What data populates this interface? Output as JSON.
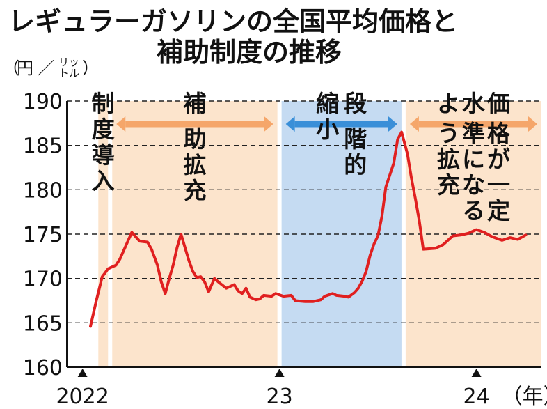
{
  "title": {
    "line1": "レギュラーガソリンの全国平均価格と",
    "line2": "補助制度の推移"
  },
  "y_unit": {
    "open": "（",
    "main": "円",
    "slash": "／",
    "small_top": "リッ",
    "small_bottom": "トル",
    "close": "）"
  },
  "chart_data": {
    "type": "line",
    "title": "レギュラーガソリンの全国平均価格と補助制度の推移",
    "ylabel": "円／リットル",
    "xlabel": "年",
    "ylim": [
      160,
      190
    ],
    "yticks": [
      160,
      165,
      170,
      175,
      180,
      185,
      190
    ],
    "x_unit": "年",
    "x_tick_labels": [
      {
        "label": "2022",
        "x": 2022.0
      },
      {
        "label": "23",
        "x": 2023.0
      },
      {
        "label": "24",
        "x": 2024.0
      }
    ],
    "xlim": [
      2021.92,
      2024.33
    ],
    "grid": {
      "horizontal": "dashed",
      "vertical": false
    },
    "line_color": "#e02020",
    "periods": [
      {
        "label": "制度導入",
        "start": 2022.08,
        "end": 2022.14,
        "color": "#fce4cc",
        "arrow": false
      },
      {
        "label": "補助拡充",
        "start": 2022.14,
        "end": 2023.0,
        "color": "#fce4cc",
        "arrow": true,
        "arrow_color": "#f5a66a"
      },
      {
        "label": "段階的縮小",
        "start": 2023.0,
        "end": 2023.63,
        "color": "#c5dbf2",
        "arrow": true,
        "arrow_color": "#3a8fd8"
      },
      {
        "label": "価格が一定水準になるよう拡充",
        "start": 2023.63,
        "end": 2024.33,
        "color": "#fce4cc",
        "arrow": true,
        "arrow_color": "#f5a66a"
      }
    ],
    "series": [
      {
        "points": [
          [
            2022.04,
            164.6
          ],
          [
            2022.07,
            167.5
          ],
          [
            2022.1,
            170.2
          ],
          [
            2022.13,
            171.1
          ],
          [
            2022.17,
            171.5
          ],
          [
            2022.19,
            172.2
          ],
          [
            2022.23,
            174.2
          ],
          [
            2022.25,
            175.2
          ],
          [
            2022.29,
            174.2
          ],
          [
            2022.33,
            174.1
          ],
          [
            2022.35,
            173.3
          ],
          [
            2022.38,
            171.5
          ],
          [
            2022.4,
            169.6
          ],
          [
            2022.42,
            168.3
          ],
          [
            2022.44,
            170.0
          ],
          [
            2022.46,
            171.5
          ],
          [
            2022.48,
            173.5
          ],
          [
            2022.5,
            175.0
          ],
          [
            2022.52,
            173.5
          ],
          [
            2022.54,
            172.0
          ],
          [
            2022.56,
            170.8
          ],
          [
            2022.58,
            170.1
          ],
          [
            2022.6,
            170.2
          ],
          [
            2022.62,
            169.6
          ],
          [
            2022.64,
            168.5
          ],
          [
            2022.67,
            170.0
          ],
          [
            2022.69,
            169.6
          ],
          [
            2022.73,
            168.9
          ],
          [
            2022.77,
            169.3
          ],
          [
            2022.79,
            168.6
          ],
          [
            2022.81,
            168.3
          ],
          [
            2022.83,
            168.9
          ],
          [
            2022.85,
            167.9
          ],
          [
            2022.88,
            167.6
          ],
          [
            2022.9,
            167.7
          ],
          [
            2022.92,
            168.1
          ],
          [
            2022.96,
            168.0
          ],
          [
            2022.98,
            168.3
          ],
          [
            2023.02,
            168.0
          ],
          [
            2023.06,
            168.1
          ],
          [
            2023.08,
            167.5
          ],
          [
            2023.13,
            167.4
          ],
          [
            2023.17,
            167.4
          ],
          [
            2023.21,
            167.6
          ],
          [
            2023.23,
            168.0
          ],
          [
            2023.27,
            168.3
          ],
          [
            2023.29,
            168.1
          ],
          [
            2023.33,
            168.0
          ],
          [
            2023.35,
            167.9
          ],
          [
            2023.38,
            168.4
          ],
          [
            2023.4,
            168.9
          ],
          [
            2023.42,
            169.7
          ],
          [
            2023.44,
            170.8
          ],
          [
            2023.46,
            172.6
          ],
          [
            2023.48,
            173.9
          ],
          [
            2023.5,
            174.8
          ],
          [
            2023.52,
            177.0
          ],
          [
            2023.54,
            180.3
          ],
          [
            2023.58,
            183.0
          ],
          [
            2023.6,
            185.7
          ],
          [
            2023.62,
            186.5
          ],
          [
            2023.65,
            184.0
          ],
          [
            2023.67,
            181.3
          ],
          [
            2023.69,
            179.0
          ],
          [
            2023.71,
            176.5
          ],
          [
            2023.73,
            173.3
          ],
          [
            2023.79,
            173.4
          ],
          [
            2023.83,
            173.8
          ],
          [
            2023.88,
            174.8
          ],
          [
            2023.92,
            174.9
          ],
          [
            2023.96,
            175.1
          ],
          [
            2024.0,
            175.5
          ],
          [
            2024.04,
            175.2
          ],
          [
            2024.08,
            174.7
          ],
          [
            2024.13,
            174.3
          ],
          [
            2024.17,
            174.6
          ],
          [
            2024.21,
            174.4
          ],
          [
            2024.25,
            174.9
          ]
        ]
      }
    ]
  }
}
